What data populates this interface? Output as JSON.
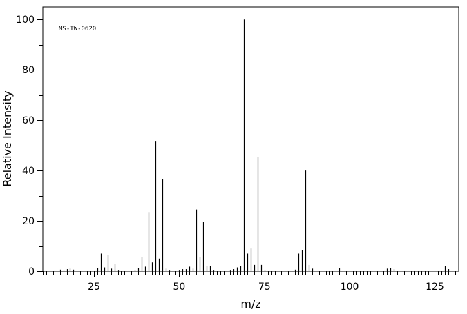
{
  "chart_data": {
    "type": "bar",
    "annotation": "MS-IW-0620",
    "xlabel": "m/z",
    "ylabel": "Relative Intensity",
    "xlim": [
      10,
      132
    ],
    "ylim": [
      0,
      105
    ],
    "x_ticks": [
      25,
      50,
      75,
      100,
      125
    ],
    "y_ticks": [
      0,
      20,
      40,
      60,
      80,
      100
    ],
    "x_tick_labels": [
      "25",
      "50",
      "75",
      "100",
      "125"
    ],
    "y_tick_labels": [
      "0",
      "20",
      "40",
      "60",
      "80",
      "100"
    ],
    "grid": false,
    "color": "#000000",
    "x": [
      15,
      16,
      17,
      18,
      19,
      26,
      27,
      28,
      29,
      30,
      31,
      32,
      37,
      38,
      39,
      40,
      41,
      42,
      43,
      44,
      45,
      46,
      47,
      50,
      51,
      52,
      53,
      54,
      55,
      56,
      57,
      58,
      59,
      60,
      65,
      66,
      67,
      68,
      69,
      70,
      71,
      72,
      73,
      74,
      75,
      84,
      85,
      86,
      87,
      88,
      89,
      97,
      111,
      112,
      113,
      128,
      129
    ],
    "values": [
      0.6,
      0.4,
      0.8,
      1.0,
      0.6,
      1.2,
      7.0,
      1.5,
      6.5,
      1.0,
      3.0,
      0.5,
      0.5,
      1.2,
      5.5,
      1.8,
      23.5,
      3.5,
      51.5,
      5.0,
      36.5,
      1.0,
      0.5,
      0.5,
      0.8,
      0.8,
      1.8,
      1.0,
      24.5,
      5.5,
      19.5,
      2.0,
      2.0,
      0.5,
      0.5,
      0.8,
      1.5,
      2.0,
      100,
      7.0,
      9.0,
      2.5,
      45.5,
      2.5,
      0.5,
      0.6,
      7.0,
      8.5,
      40.0,
      2.5,
      1.0,
      1.2,
      1.0,
      1.3,
      0.8,
      2.0,
      0.8
    ]
  }
}
